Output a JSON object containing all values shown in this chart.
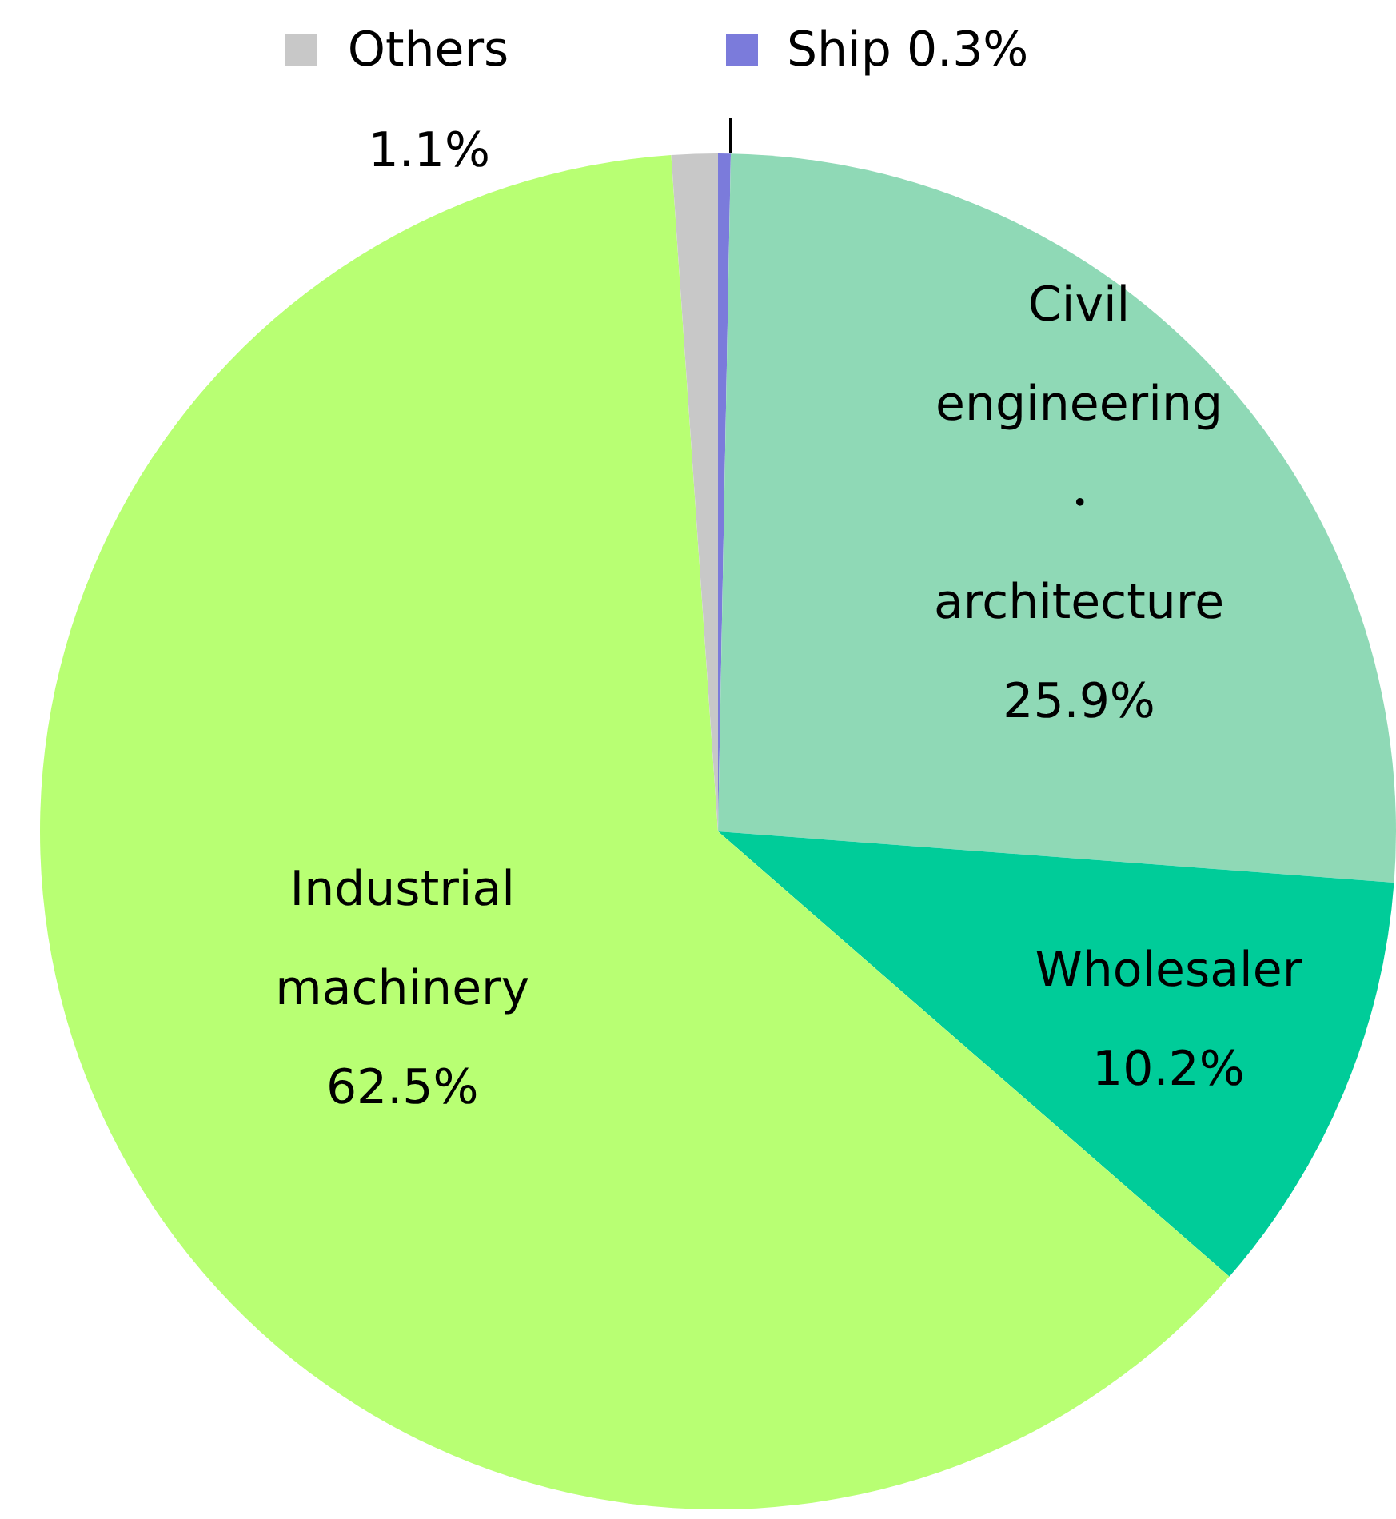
{
  "chart_data": {
    "type": "pie",
    "categories": [
      "Ship",
      "Civil engineering ・ architecture",
      "Wholesaler",
      "Industrial machinery",
      "Others"
    ],
    "values": [
      0.3,
      25.9,
      10.2,
      62.5,
      1.1
    ],
    "colors": [
      "#7b7bdb",
      "#8fd9b6",
      "#00cc99",
      "#b8ff73",
      "#c8c8c8"
    ],
    "legend": "top",
    "value_labels": [
      "0.3%",
      "25.9%",
      "10.2%",
      "62.5%",
      "1.1%"
    ]
  }
}
